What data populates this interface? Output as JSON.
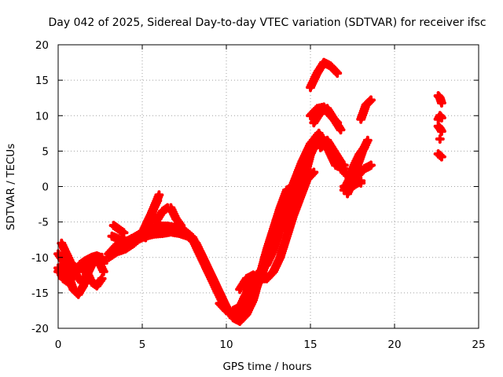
{
  "chart_data": {
    "type": "scatter",
    "title": "Day 042 of 2025, Sidereal Day-to-day VTEC variation (SDTVAR) for receiver ifsc",
    "xlabel": "GPS time / hours",
    "ylabel": "SDTVAR / TECUs",
    "xlim": [
      0,
      25
    ],
    "ylim": [
      -20,
      20
    ],
    "xticks": [
      0,
      5,
      10,
      15,
      20,
      25
    ],
    "yticks": [
      -20,
      -15,
      -10,
      -5,
      0,
      5,
      10,
      15,
      20
    ],
    "grid": true,
    "marker": "+",
    "color": "#ff0000",
    "series": [
      {
        "x": [
          0.0,
          0.3,
          0.6,
          0.8,
          1.0,
          1.3,
          1.6,
          2.0,
          2.3,
          2.5,
          2.7
        ],
        "y": [
          -11.5,
          -13.0,
          -13.5,
          -13.0,
          -12.0,
          -11.0,
          -10.5,
          -10.0,
          -9.8,
          -10.0,
          -10.5
        ]
      },
      {
        "x": [
          0.0,
          0.3,
          0.6,
          0.9,
          1.2,
          1.5,
          1.8,
          2.1,
          2.4,
          2.7
        ],
        "y": [
          -9.5,
          -10.5,
          -12.5,
          -14.5,
          -15.2,
          -14.0,
          -12.0,
          -10.5,
          -10.3,
          -10.8
        ]
      },
      {
        "x": [
          0.0,
          0.3,
          0.5,
          0.8,
          1.1,
          1.4,
          1.7,
          2.0,
          2.3,
          2.6
        ],
        "y": [
          -12.0,
          -11.0,
          -10.5,
          -11.0,
          -12.5,
          -13.5,
          -12.5,
          -11.0,
          -10.0,
          -10.0
        ]
      },
      {
        "x": [
          0.2,
          0.5,
          0.8,
          1.1,
          1.4,
          1.7,
          2.0,
          2.3,
          2.6
        ],
        "y": [
          -8.0,
          -9.5,
          -11.0,
          -11.5,
          -11.0,
          -12.0,
          -13.5,
          -14.0,
          -13.0
        ]
      },
      {
        "x": [
          1.5,
          1.8,
          2.1,
          2.4,
          2.7
        ],
        "y": [
          -12.0,
          -11.0,
          -10.0,
          -10.5,
          -12.0
        ]
      },
      {
        "x": [
          3.0,
          3.5,
          4.0,
          4.5,
          5.0,
          5.5,
          6.0,
          6.5,
          7.0,
          7.5,
          8.0,
          8.5,
          9.0,
          9.5,
          9.8,
          10.0
        ],
        "y": [
          -10.0,
          -9.2,
          -8.8,
          -8.0,
          -7.0,
          -6.4,
          -6.0,
          -6.0,
          -6.2,
          -6.6,
          -7.5,
          -10.0,
          -12.5,
          -15.0,
          -16.5,
          -17.5
        ]
      },
      {
        "x": [
          3.0,
          3.5,
          4.0,
          4.5,
          5.0,
          5.5,
          6.0,
          6.5,
          7.0,
          7.5,
          8.0,
          8.5,
          9.0,
          9.5,
          10.0
        ],
        "y": [
          -9.5,
          -8.2,
          -7.8,
          -7.2,
          -6.5,
          -6.0,
          -5.6,
          -5.6,
          -5.8,
          -6.2,
          -7.2,
          -9.5,
          -12.0,
          -14.5,
          -17.0
        ]
      },
      {
        "x": [
          3.2,
          3.7,
          4.2,
          4.7,
          5.2,
          5.7,
          6.2,
          6.7,
          7.2,
          7.7,
          8.2,
          8.7,
          9.2,
          9.7,
          10.1
        ],
        "y": [
          -7.0,
          -7.5,
          -7.8,
          -7.5,
          -7.0,
          -6.7,
          -6.6,
          -6.4,
          -6.6,
          -7.0,
          -8.0,
          -10.5,
          -13.0,
          -15.5,
          -17.5
        ]
      },
      {
        "x": [
          3.3,
          3.6,
          3.9
        ],
        "y": [
          -5.5,
          -6.0,
          -6.5
        ]
      },
      {
        "x": [
          5.0,
          5.5,
          5.9
        ],
        "y": [
          -6.5,
          -4.0,
          -2.0
        ]
      },
      {
        "x": [
          5.2,
          5.6,
          6.0
        ],
        "y": [
          -7.2,
          -3.5,
          -1.2
        ]
      },
      {
        "x": [
          5.8,
          6.2,
          6.5
        ],
        "y": [
          -5.0,
          -3.5,
          -3.0
        ]
      },
      {
        "x": [
          6.7,
          7.0,
          7.3
        ],
        "y": [
          -3.0,
          -4.5,
          -5.5
        ]
      },
      {
        "x": [
          9.6,
          10.0,
          10.5,
          11.0,
          11.5,
          12.0,
          12.5,
          13.0,
          13.5,
          14.0,
          14.5,
          15.0,
          15.5,
          16.0,
          16.5,
          17.0
        ],
        "y": [
          -16.5,
          -17.5,
          -18.0,
          -17.5,
          -16.0,
          -13.0,
          -10.0,
          -6.0,
          -2.5,
          0.5,
          3.5,
          6.0,
          7.5,
          5.5,
          3.0,
          2.5
        ]
      },
      {
        "x": [
          10.0,
          10.4,
          10.8,
          11.2,
          11.6,
          12.0,
          12.4,
          12.8,
          13.2,
          13.6,
          14.0,
          14.4,
          14.8
        ],
        "y": [
          -17.0,
          -18.5,
          -19.0,
          -18.0,
          -16.0,
          -12.5,
          -9.0,
          -6.0,
          -3.0,
          -0.5,
          0.0,
          1.5,
          3.0
        ]
      },
      {
        "x": [
          10.4,
          10.8,
          11.2,
          11.6,
          12.0,
          12.4,
          12.8,
          13.2,
          13.6,
          14.0,
          14.4,
          14.8
        ],
        "y": [
          -17.5,
          -17.0,
          -15.0,
          -13.0,
          -12.0,
          -11.0,
          -9.0,
          -6.0,
          -3.0,
          -1.0,
          1.0,
          2.5
        ]
      },
      {
        "x": [
          10.8,
          11.2,
          11.6,
          12.0,
          12.4,
          12.8,
          13.2,
          13.6,
          14.0,
          14.4,
          14.8,
          15.2
        ],
        "y": [
          -14.5,
          -13.0,
          -12.5,
          -13.0,
          -13.0,
          -12.0,
          -10.0,
          -7.0,
          -4.0,
          -1.5,
          1.0,
          2.0
        ]
      },
      {
        "x": [
          13.0,
          13.5,
          14.0,
          14.5,
          15.0,
          15.5,
          16.0,
          16.5,
          17.0
        ],
        "y": [
          -6.5,
          -5.5,
          -3.5,
          0.0,
          4.5,
          7.0,
          6.0,
          3.5,
          3.0
        ]
      },
      {
        "x": [
          15.0,
          15.4,
          15.8,
          16.2,
          16.6
        ],
        "y": [
          10.0,
          11.0,
          11.2,
          10.0,
          9.0
        ]
      },
      {
        "x": [
          15.0,
          15.4,
          15.8,
          16.2,
          16.6
        ],
        "y": [
          14.0,
          16.0,
          17.5,
          17.0,
          16.0
        ]
      },
      {
        "x": [
          15.2,
          15.6,
          16.0,
          16.4,
          16.8
        ],
        "y": [
          9.0,
          10.5,
          11.0,
          9.5,
          8.0
        ]
      },
      {
        "x": [
          15.6,
          16.0,
          16.4,
          16.8
        ],
        "y": [
          5.5,
          6.5,
          5.0,
          3.5
        ]
      },
      {
        "x": [
          17.0,
          17.4,
          17.8,
          18.2,
          18.6
        ],
        "y": [
          0.0,
          0.5,
          1.5,
          2.5,
          3.0
        ]
      },
      {
        "x": [
          17.0,
          17.3,
          17.6,
          17.9,
          18.2
        ],
        "y": [
          -0.5,
          1.0,
          3.0,
          4.5,
          5.5
        ]
      },
      {
        "x": [
          17.2,
          17.5,
          17.8,
          18.1,
          18.4
        ],
        "y": [
          -1.0,
          0.5,
          3.0,
          5.0,
          6.5
        ]
      },
      {
        "x": [
          17.0,
          17.5,
          18.0
        ],
        "y": [
          2.0,
          1.0,
          0.5
        ]
      },
      {
        "x": [
          17.2,
          17.6,
          18.0
        ],
        "y": [
          -0.5,
          0.2,
          0.8
        ]
      },
      {
        "x": [
          18.0,
          18.3,
          18.6
        ],
        "y": [
          9.5,
          11.5,
          12.2
        ]
      },
      {
        "x": [
          22.6,
          22.7,
          22.8
        ],
        "y": [
          12.8,
          12.5,
          11.8
        ]
      },
      {
        "x": [
          22.6,
          22.7,
          22.8
        ],
        "y": [
          9.5,
          10.0,
          9.7
        ]
      },
      {
        "x": [
          22.6,
          22.7,
          22.8
        ],
        "y": [
          8.5,
          8.2,
          7.8
        ]
      },
      {
        "x": [
          22.7
        ],
        "y": [
          6.7
        ]
      },
      {
        "x": [
          22.6,
          22.7,
          22.8
        ],
        "y": [
          4.6,
          4.4,
          4.2
        ]
      }
    ]
  }
}
